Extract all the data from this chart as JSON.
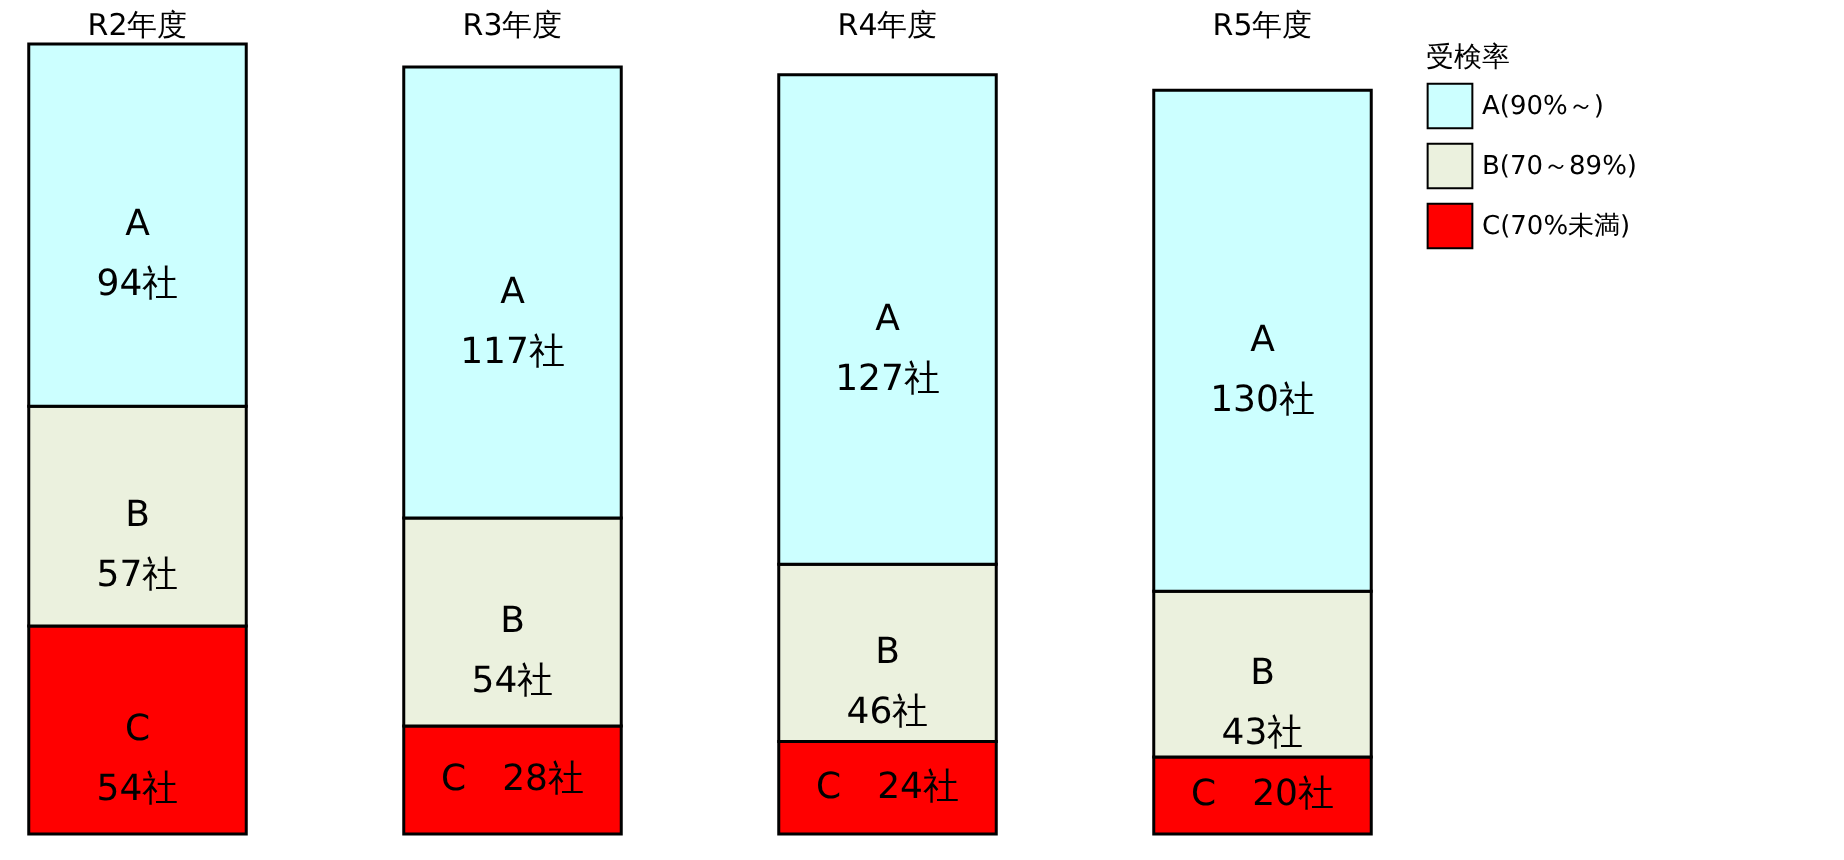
{
  "chart_data": {
    "type": "bar",
    "stacked": true,
    "categories": [
      "R2年度",
      "R3年度",
      "R4年度",
      "R5年度"
    ],
    "ylim": [
      0,
      205
    ],
    "tick_labels": "x",
    "legend_title": "受検率",
    "legend": "right",
    "series": [
      {
        "name": "C(70%未満)",
        "color": "#ff0000",
        "values": [
          54,
          28,
          24,
          20
        ],
        "value_labels": [
          "C\n54社",
          "C　28社",
          "C　24社",
          "C　20社"
        ]
      },
      {
        "name": "B(70～89%)",
        "color": "#ebf1de",
        "values": [
          57,
          54,
          46,
          43
        ],
        "value_labels": [
          "B\n57社",
          "B\n54社",
          "B\n46社",
          "B\n43社"
        ]
      },
      {
        "name": "A(90%～)",
        "color": "#ccffff",
        "values": [
          94,
          117,
          127,
          130
        ],
        "value_labels": [
          "A\n94社",
          "A\n117社",
          "A\n127社",
          "A\n130社"
        ]
      }
    ]
  }
}
